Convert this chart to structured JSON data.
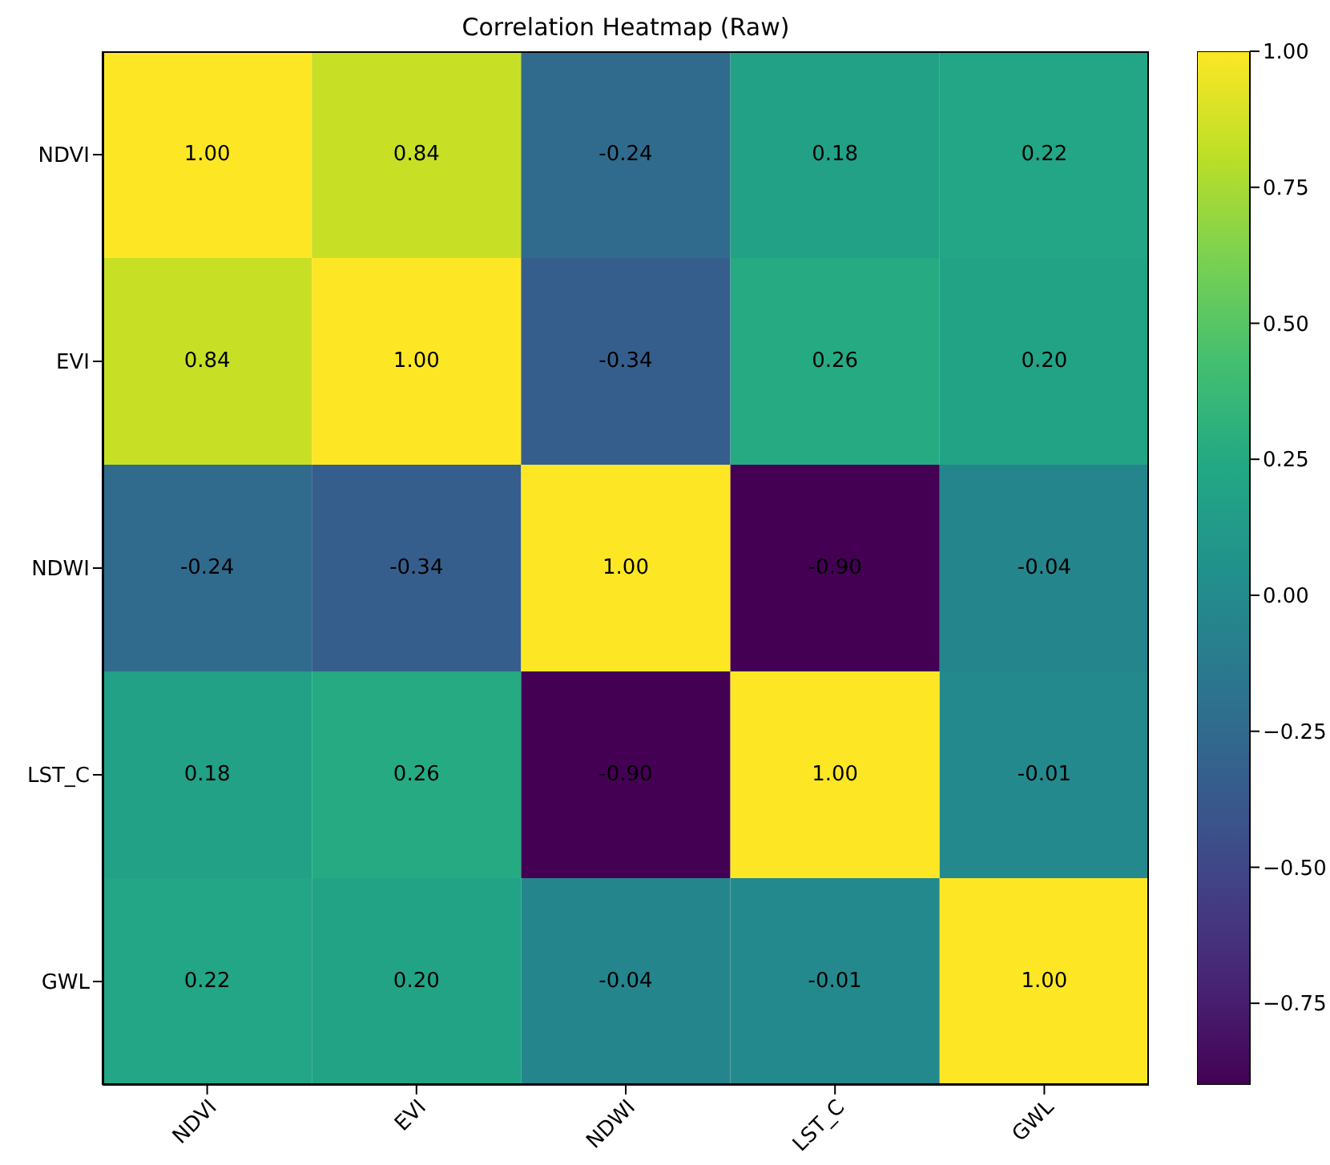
{
  "chart_data": {
    "type": "heatmap",
    "title": "Correlation Heatmap (Raw)",
    "categories": [
      "NDVI",
      "EVI",
      "NDWI",
      "LST_C",
      "GWL"
    ],
    "y_categories": [
      "NDVI",
      "EVI",
      "NDWI",
      "LST_C",
      "GWL"
    ],
    "cells": [
      [
        1.0,
        0.84,
        -0.24,
        0.18,
        0.22
      ],
      [
        0.84,
        1.0,
        -0.34,
        0.26,
        0.2
      ],
      [
        -0.24,
        -0.34,
        1.0,
        -0.9,
        -0.04
      ],
      [
        0.18,
        0.26,
        -0.9,
        1.0,
        -0.01
      ],
      [
        0.22,
        0.2,
        -0.04,
        -0.01,
        1.0
      ]
    ],
    "cell_labels": [
      [
        "1.00",
        "0.84",
        "-0.24",
        "0.18",
        "0.22"
      ],
      [
        "0.84",
        "1.00",
        "-0.34",
        "0.26",
        "0.20"
      ],
      [
        "-0.24",
        "-0.34",
        "1.00",
        "-0.90",
        "-0.04"
      ],
      [
        "0.18",
        "0.26",
        "-0.90",
        "1.00",
        "-0.01"
      ],
      [
        "0.22",
        "0.20",
        "-0.04",
        "-0.01",
        "1.00"
      ]
    ],
    "clim": [
      -0.9,
      1.0
    ],
    "cticks": [
      {
        "value": 1.0,
        "label": "1.00"
      },
      {
        "value": 0.75,
        "label": "0.75"
      },
      {
        "value": 0.5,
        "label": "0.50"
      },
      {
        "value": 0.25,
        "label": "0.25"
      },
      {
        "value": 0,
        "label": "0.00"
      },
      {
        "value": -0.25,
        "label": "−0.25"
      },
      {
        "value": -0.5,
        "label": "−0.50"
      },
      {
        "value": -0.75,
        "label": "−0.75"
      }
    ]
  }
}
